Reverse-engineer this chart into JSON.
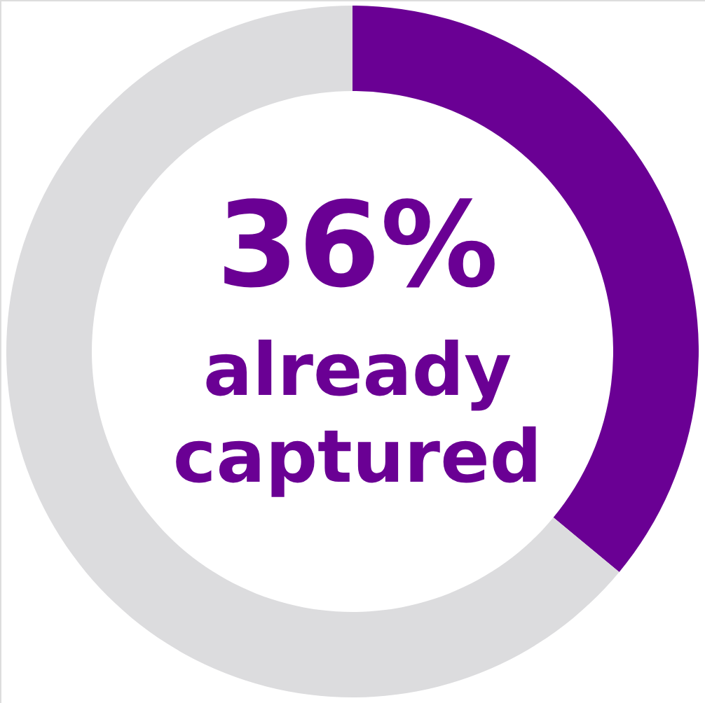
{
  "chart_data": {
    "type": "donut",
    "categories": [
      null,
      null
    ],
    "values": [
      36,
      64
    ],
    "colors": [
      "#6a0094",
      "#dcdcde"
    ],
    "annotations": [
      "36%",
      "already captured"
    ]
  }
}
